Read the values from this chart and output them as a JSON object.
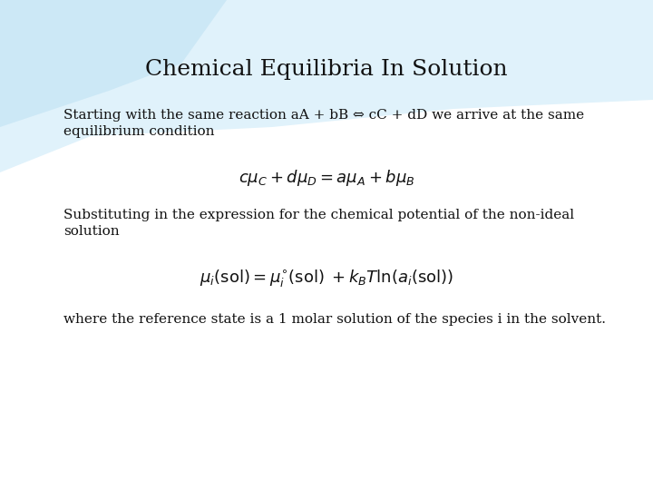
{
  "title": "Chemical Equilibria In Solution",
  "title_fontsize": 18,
  "title_font": "serif",
  "bg_color": "#ffffff",
  "text_color": "#111111",
  "body_fontsize": 11,
  "body_font": "serif",
  "para1_line1": "Starting with the same reaction aA + bB ⇔ cC + dD we arrive at the same",
  "para1_line2": "equilibrium condition",
  "eq1": "$c\\mu_C + d\\mu_D = a\\mu_A + b\\mu_B$",
  "eq1_fontsize": 13,
  "para2_line1": "Substituting in the expression for the chemical potential of the non-ideal",
  "para2_line2": "solution",
  "eq2": "$\\mu_i(\\mathrm{sol}) = \\mu_i^{\\circ}(\\mathrm{sol})\\; + k_B T\\ln(a_i(\\mathrm{sol}))$",
  "eq2_fontsize": 13,
  "para3": "where the reference state is a 1 molar solution of the species i in the solvent.",
  "blob_color": "#cce8f6",
  "blob2_color": "#e0f2fb"
}
